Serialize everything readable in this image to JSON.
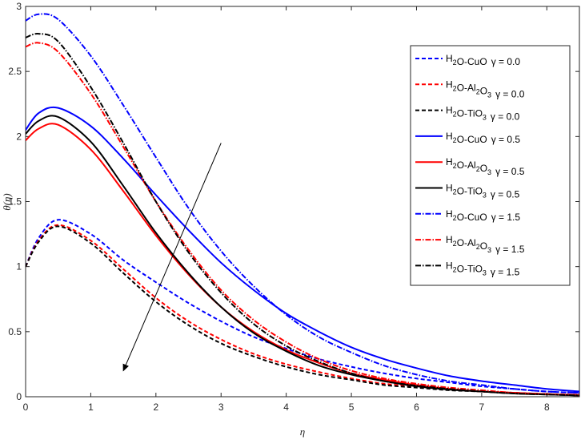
{
  "chart_data": {
    "type": "line",
    "xlabel": "η",
    "ylabel": "θ(η)",
    "xlim": [
      0,
      8.5
    ],
    "ylim": [
      0,
      3
    ],
    "x_ticks": [
      "0",
      "1",
      "2",
      "3",
      "4",
      "5",
      "6",
      "7",
      "8"
    ],
    "y_ticks": [
      "0",
      "0.5",
      "1",
      "1.5",
      "2",
      "2.5",
      "3"
    ],
    "grid": false,
    "legend_position": "top-right",
    "x": [
      0,
      0.2,
      0.5,
      1,
      1.5,
      2,
      2.5,
      3,
      3.5,
      4,
      4.5,
      5,
      5.5,
      6,
      6.5,
      7,
      7.5,
      8,
      8.5
    ],
    "series": [
      {
        "fluid": "H2O-CuO",
        "gamma": "γ = 0.0",
        "color": "#0000ff",
        "style": "dashed",
        "values": [
          1.0,
          1.22,
          1.36,
          1.25,
          1.05,
          0.88,
          0.72,
          0.58,
          0.46,
          0.37,
          0.29,
          0.23,
          0.18,
          0.14,
          0.11,
          0.08,
          0.06,
          0.04,
          0.03
        ]
      },
      {
        "fluid": "H2O-Al2O3",
        "gamma": "γ = 0.0",
        "color": "#ff0000",
        "style": "dashed",
        "values": [
          1.0,
          1.2,
          1.32,
          1.2,
          0.98,
          0.76,
          0.58,
          0.44,
          0.33,
          0.25,
          0.19,
          0.14,
          0.1,
          0.08,
          0.06,
          0.04,
          0.03,
          0.02,
          0.015
        ]
      },
      {
        "fluid": "H2O-TiO3",
        "gamma": "γ = 0.0",
        "color": "#000000",
        "style": "dashed",
        "values": [
          1.0,
          1.19,
          1.31,
          1.18,
          0.95,
          0.73,
          0.55,
          0.41,
          0.31,
          0.23,
          0.17,
          0.13,
          0.09,
          0.07,
          0.05,
          0.04,
          0.03,
          0.02,
          0.01
        ]
      },
      {
        "fluid": "H2O-CuO",
        "gamma": "γ = 0.5",
        "color": "#0000ff",
        "style": "solid",
        "values": [
          2.05,
          2.18,
          2.22,
          2.08,
          1.83,
          1.55,
          1.28,
          1.03,
          0.82,
          0.64,
          0.5,
          0.38,
          0.29,
          0.22,
          0.16,
          0.12,
          0.09,
          0.06,
          0.04
        ]
      },
      {
        "fluid": "H2O-Al2O3",
        "gamma": "γ = 0.5",
        "color": "#ff0000",
        "style": "solid",
        "values": [
          1.97,
          2.06,
          2.09,
          1.9,
          1.58,
          1.24,
          0.94,
          0.69,
          0.5,
          0.36,
          0.26,
          0.18,
          0.13,
          0.09,
          0.06,
          0.04,
          0.03,
          0.02,
          0.01
        ]
      },
      {
        "fluid": "H2O-TiO3",
        "gamma": "γ = 0.5",
        "color": "#000000",
        "style": "solid",
        "values": [
          2.02,
          2.12,
          2.15,
          1.96,
          1.62,
          1.26,
          0.95,
          0.69,
          0.49,
          0.35,
          0.24,
          0.17,
          0.12,
          0.08,
          0.055,
          0.04,
          0.025,
          0.017,
          0.01
        ]
      },
      {
        "fluid": "H2O-CuO",
        "gamma": "γ = 1.5",
        "color": "#0000ff",
        "style": "dashdot",
        "values": [
          2.89,
          2.94,
          2.9,
          2.62,
          2.24,
          1.84,
          1.45,
          1.12,
          0.85,
          0.63,
          0.46,
          0.34,
          0.24,
          0.17,
          0.12,
          0.09,
          0.06,
          0.04,
          0.03
        ]
      },
      {
        "fluid": "H2O-Al2O3",
        "gamma": "γ = 1.5",
        "color": "#ff0000",
        "style": "dashdot",
        "values": [
          2.69,
          2.72,
          2.65,
          2.33,
          1.92,
          1.5,
          1.13,
          0.82,
          0.59,
          0.42,
          0.29,
          0.2,
          0.14,
          0.1,
          0.07,
          0.05,
          0.03,
          0.02,
          0.015
        ]
      },
      {
        "fluid": "H2O-TiO3",
        "gamma": "γ = 1.5",
        "color": "#000000",
        "style": "dashdot",
        "values": [
          2.76,
          2.79,
          2.73,
          2.38,
          1.95,
          1.5,
          1.11,
          0.8,
          0.56,
          0.39,
          0.27,
          0.18,
          0.12,
          0.085,
          0.06,
          0.04,
          0.025,
          0.017,
          0.01
        ]
      }
    ],
    "arrow": {
      "from": [
        3.0,
        1.95
      ],
      "to": [
        1.5,
        0.2
      ]
    }
  }
}
